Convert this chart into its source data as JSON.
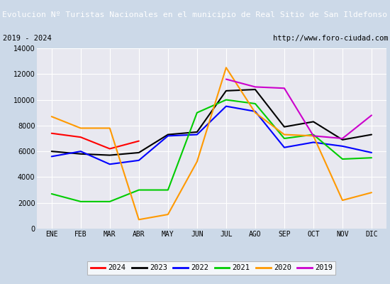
{
  "title": "Evolucion Nº Turistas Nacionales en el municipio de Real Sitio de San Ildefonso",
  "subtitle_left": "2019 - 2024",
  "subtitle_right": "http://www.foro-ciudad.com",
  "months": [
    "ENE",
    "FEB",
    "MAR",
    "ABR",
    "MAY",
    "JUN",
    "JUL",
    "AGO",
    "SEP",
    "OCT",
    "NOV",
    "DIC"
  ],
  "series": {
    "2024": [
      7400,
      7100,
      6200,
      6800,
      null,
      null,
      null,
      null,
      null,
      null,
      null,
      null
    ],
    "2023": [
      6000,
      5800,
      5700,
      5900,
      7300,
      7500,
      10700,
      10800,
      7900,
      8300,
      6900,
      7300
    ],
    "2022": [
      5600,
      6000,
      5000,
      5300,
      7200,
      7300,
      9500,
      9100,
      6300,
      6700,
      6400,
      5900
    ],
    "2021": [
      2700,
      2100,
      2100,
      3000,
      3000,
      9000,
      10000,
      9700,
      7000,
      7300,
      5400,
      5500
    ],
    "2020": [
      8700,
      7800,
      7800,
      700,
      1100,
      5200,
      12500,
      9000,
      7300,
      7200,
      2200,
      2800
    ],
    "2019": [
      null,
      null,
      null,
      null,
      null,
      null,
      11600,
      11000,
      10900,
      7200,
      7000,
      8800
    ]
  },
  "colors": {
    "2024": "#ff0000",
    "2023": "#000000",
    "2022": "#0000ff",
    "2021": "#00cc00",
    "2020": "#ff9900",
    "2019": "#cc00cc"
  },
  "ylim": [
    0,
    14000
  ],
  "yticks": [
    0,
    2000,
    4000,
    6000,
    8000,
    10000,
    12000,
    14000
  ],
  "title_bg_color": "#4472c4",
  "title_text_color": "#ffffff",
  "plot_bg_color": "#e8e8f0",
  "outer_bg_color": "#ccd9e8",
  "grid_color": "#ffffff",
  "subtitle_bg_color": "#ffffff",
  "legend_order": [
    "2024",
    "2023",
    "2022",
    "2021",
    "2020",
    "2019"
  ]
}
